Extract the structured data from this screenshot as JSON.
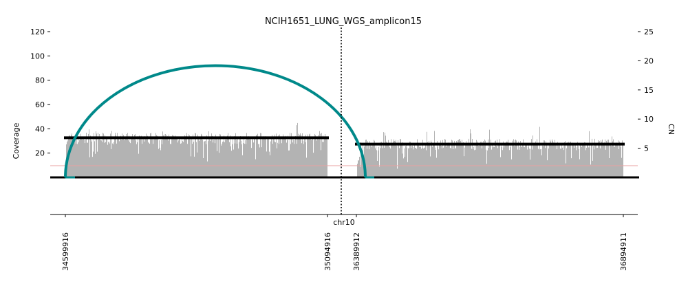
{
  "chart_data": {
    "type": "bar",
    "title": "NCIH1651_LUNG_WGS_amplicon15",
    "ylabel": "Coverage",
    "y2label": "CN",
    "xlabel": "chr10",
    "ylim": [
      -30,
      120
    ],
    "yticks": [
      20,
      40,
      60,
      80,
      100,
      120
    ],
    "y2lim": [
      -6.25,
      25
    ],
    "y2ticks": [
      5,
      10,
      15,
      20,
      25
    ],
    "colors": {
      "coverage": "#b3b3b3",
      "cn_segment": "#000000",
      "threshold": "#e8a0a0",
      "breakpoint_arc": "#00898a",
      "chromosome_divider": "#000000"
    },
    "segments": [
      {
        "x_labels": [
          "34599916",
          "35094916"
        ],
        "cn": 6.8,
        "coverage_mean": 32,
        "coverage_spread": 6
      },
      {
        "x_labels": [
          "36389912",
          "36894911"
        ],
        "cn": 5.7,
        "coverage_mean": 27,
        "coverage_spread": 6
      }
    ],
    "threshold_cn": 2,
    "breakpoint_arc": {
      "peak_coverage": 92
    },
    "chromosome": "chr10"
  }
}
